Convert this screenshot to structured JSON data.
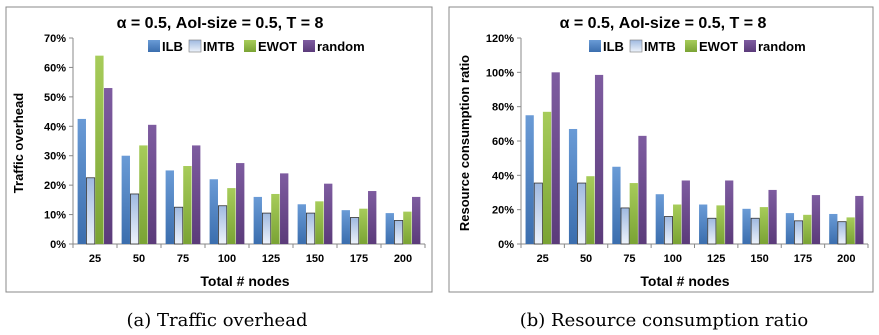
{
  "charts": [
    {
      "caption": "(a) Traffic overhead",
      "chart_data": {
        "type": "bar",
        "title": "α = 0.5, AoI-size = 0.5, T = 8",
        "xlabel": "Total # nodes",
        "ylabel": "Traffic overhead",
        "categories": [
          "25",
          "50",
          "75",
          "100",
          "125",
          "150",
          "175",
          "200"
        ],
        "ylim": [
          0,
          70
        ],
        "yticks": [
          "0%",
          "10%",
          "20%",
          "30%",
          "40%",
          "50%",
          "60%",
          "70%"
        ],
        "ytick_values": [
          0,
          10,
          20,
          30,
          40,
          50,
          60,
          70
        ],
        "grid": false,
        "legend": "top",
        "series": [
          {
            "name": "ILB",
            "values": [
              42.5,
              30,
              25,
              22,
              16,
              13.5,
              11.5,
              10.5
            ]
          },
          {
            "name": "IMTB",
            "values": [
              22.5,
              17,
              12.5,
              13,
              10.5,
              10.5,
              9,
              8
            ]
          },
          {
            "name": "EWOT",
            "values": [
              64,
              33.5,
              26.5,
              19,
              17,
              14.5,
              12,
              11
            ]
          },
          {
            "name": "random",
            "values": [
              53,
              40.5,
              33.5,
              27.5,
              24,
              20.5,
              18,
              16
            ]
          }
        ]
      }
    },
    {
      "caption": "(b) Resource consumption ratio",
      "chart_data": {
        "type": "bar",
        "title": "α = 0.5, AoI-size = 0.5, T = 8",
        "xlabel": "Total # nodes",
        "ylabel": "Resource consumption ratio",
        "categories": [
          "25",
          "50",
          "75",
          "100",
          "125",
          "150",
          "175",
          "200"
        ],
        "ylim": [
          0,
          120
        ],
        "yticks": [
          "0%",
          "20%",
          "40%",
          "60%",
          "80%",
          "100%",
          "120%"
        ],
        "ytick_values": [
          0,
          20,
          40,
          60,
          80,
          100,
          120
        ],
        "grid": false,
        "legend": "top",
        "series": [
          {
            "name": "ILB",
            "values": [
              75,
              67,
              45,
              29,
              23,
              20.5,
              18,
              17.5
            ]
          },
          {
            "name": "IMTB",
            "values": [
              35.5,
              35.5,
              21,
              16,
              15,
              15,
              13.5,
              13
            ]
          },
          {
            "name": "EWOT",
            "values": [
              77,
              39.5,
              35.5,
              23,
              22.5,
              21.5,
              17,
              15.5
            ]
          },
          {
            "name": "random",
            "values": [
              100,
              98.5,
              63,
              37,
              37,
              31.5,
              28.5,
              28
            ]
          }
        ]
      }
    }
  ],
  "series_colors": {
    "ILB": "#4a7ebb",
    "IMTB": "#c8d9f0",
    "EWOT": "#8db53f",
    "random": "#6b4a8c"
  }
}
